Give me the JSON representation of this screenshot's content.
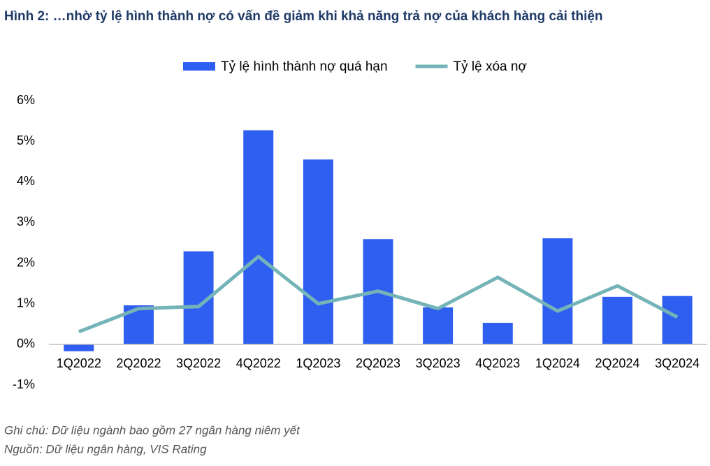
{
  "chart_data": {
    "type": "combo",
    "title": "Hình 2: …nhờ tỷ lệ hình thành nợ có vấn đề giảm khi khả năng trả nợ của khách hàng cải thiện",
    "categories": [
      "1Q2022",
      "2Q2022",
      "3Q2022",
      "4Q2022",
      "1Q2023",
      "2Q2023",
      "3Q2023",
      "4Q2023",
      "1Q2024",
      "2Q2024",
      "3Q2024"
    ],
    "series": [
      {
        "name": "Tỷ lệ hình thành nợ quá hạn",
        "type": "bar",
        "color": "#2e5ff0",
        "values": [
          -0.17,
          0.96,
          2.29,
          5.27,
          4.55,
          2.59,
          0.91,
          0.53,
          2.61,
          1.17,
          1.19
        ]
      },
      {
        "name": "Tỷ lệ xóa nợ",
        "type": "line",
        "color": "#74b4b8",
        "values": [
          0.31,
          0.88,
          0.93,
          2.16,
          1.0,
          1.31,
          0.88,
          1.65,
          0.82,
          1.44,
          0.67
        ]
      }
    ],
    "ylim": [
      -1,
      6
    ],
    "yticks": [
      {
        "value": -1,
        "label": "-1%"
      },
      {
        "value": 0,
        "label": "0%"
      },
      {
        "value": 1,
        "label": "1%"
      },
      {
        "value": 2,
        "label": "2%"
      },
      {
        "value": 3,
        "label": "3%"
      },
      {
        "value": 4,
        "label": "4%"
      },
      {
        "value": 5,
        "label": "5%"
      },
      {
        "value": 6,
        "label": "6%"
      }
    ],
    "legend": "top",
    "notes": [
      "Ghi chú: Dữ liệu ngành bao gồm 27 ngân hàng niêm yết",
      "Nguồn: Dữ liệu ngân hàng, VIS Rating"
    ]
  }
}
